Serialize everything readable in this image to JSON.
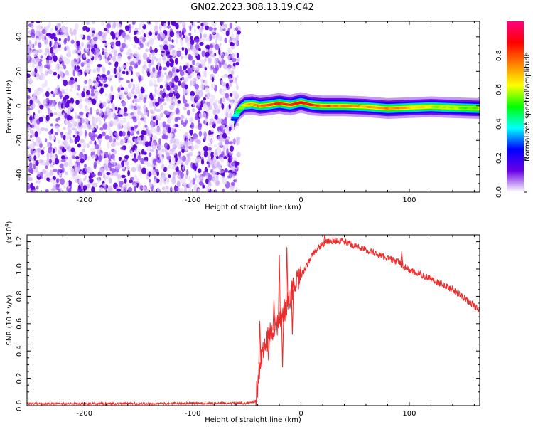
{
  "figure": {
    "title": "GN02.2023.308.13.19.C42",
    "background": "#ffffff"
  },
  "chart_data": [
    {
      "type": "heatmap",
      "name": "spectrogram",
      "xlabel": "Height of straight line (km)",
      "ylabel": "Frequency (Hz)",
      "xlim": [
        -253,
        165
      ],
      "ylim": [
        -50,
        49
      ],
      "xticks": [
        -200,
        -100,
        0,
        100
      ],
      "xtick_labels": [
        "-200",
        "-100",
        "0",
        "100"
      ],
      "yticks": [
        -40,
        -20,
        0,
        20,
        40
      ],
      "ytick_labels": [
        "-40",
        "-20",
        "0",
        "20",
        "40"
      ],
      "noise_region_x": [
        -253,
        -60
      ],
      "noise_level": 0.15,
      "signal_ridge": {
        "x": [
          -62,
          -57,
          -52,
          -45,
          -38,
          -30,
          -20,
          -10,
          0,
          10,
          20,
          40,
          60,
          80,
          100,
          120,
          140,
          165
        ],
        "frequency_hz": [
          -8,
          -2,
          0.5,
          1,
          0,
          0.5,
          1.5,
          0.5,
          2,
          0.5,
          0,
          0,
          -0.5,
          -1.5,
          -1,
          -0.5,
          -1,
          -1.5
        ],
        "peak_amplitude": [
          0.3,
          0.5,
          0.6,
          0.7,
          0.75,
          0.8,
          0.85,
          0.8,
          0.9,
          0.85,
          0.8,
          0.75,
          0.7,
          0.75,
          0.7,
          0.6,
          0.55,
          0.5
        ]
      },
      "colorbar": {
        "label": "Normalized spectral amplitude",
        "range": [
          0,
          1
        ],
        "ticks": [
          0,
          0.2,
          0.4,
          0.6,
          0.8
        ],
        "tick_labels": [
          "0.0",
          "0.2",
          "0.4",
          "0.6",
          "0.8"
        ],
        "colors": [
          "#ffffff",
          "#6a00e6",
          "#0000ff",
          "#00ffff",
          "#00ff00",
          "#ffff00",
          "#ff8000",
          "#ff0000",
          "#ff0080"
        ]
      },
      "grid": false
    },
    {
      "type": "line",
      "name": "snr",
      "xlabel": "Height of straight line (km)",
      "ylabel": "SNR (10 * v/v)",
      "y_scale_label": "(x10",
      "y_scale_exponent": "4",
      "y_scale_close": ")",
      "xlim": [
        -253,
        165
      ],
      "ylim": [
        0,
        1.25
      ],
      "xticks": [
        -200,
        -100,
        0,
        100
      ],
      "xtick_labels": [
        "-200",
        "-100",
        "0",
        "100"
      ],
      "yticks": [
        0,
        0.2,
        0.4,
        0.6,
        0.8,
        1.0,
        1.2
      ],
      "ytick_labels": [
        "0.0",
        "0.2",
        "0.4",
        "0.6",
        "0.8",
        "1.0",
        "1.2"
      ],
      "line_color": "#ee2a2a",
      "series": [
        {
          "x": [
            -253,
            -150,
            -50,
            -42,
            -40,
            -38,
            -35,
            -32,
            -30,
            -27,
            -25,
            -22,
            -20,
            -18,
            -15,
            -12,
            -10,
            -8,
            -5,
            0,
            5,
            10,
            15,
            20,
            25,
            30,
            40,
            60,
            80,
            90,
            95,
            100,
            120,
            140,
            165
          ],
          "values": [
            0.015,
            0.015,
            0.018,
            0.03,
            0.15,
            0.3,
            0.42,
            0.45,
            0.5,
            0.56,
            0.55,
            0.6,
            0.58,
            0.65,
            0.7,
            0.75,
            0.8,
            0.85,
            0.88,
            0.95,
            1.02,
            1.1,
            1.15,
            1.18,
            1.2,
            1.21,
            1.2,
            1.14,
            1.08,
            1.05,
            1.02,
            0.99,
            0.93,
            0.85,
            0.7
          ]
        }
      ],
      "spikes": [
        {
          "x": -38,
          "y": 0.62
        },
        {
          "x": -25,
          "y": 0.78
        },
        {
          "x": -20,
          "y": 1.1
        },
        {
          "x": -13,
          "y": 1.16
        },
        {
          "x": -8,
          "y": 0.52
        },
        {
          "x": 22,
          "y": 1.26
        },
        {
          "x": 93,
          "y": 1.13
        }
      ],
      "dips": [
        {
          "x": -17,
          "y": 0.28
        },
        {
          "x": -30,
          "y": 0.33
        }
      ],
      "grid": false
    }
  ]
}
